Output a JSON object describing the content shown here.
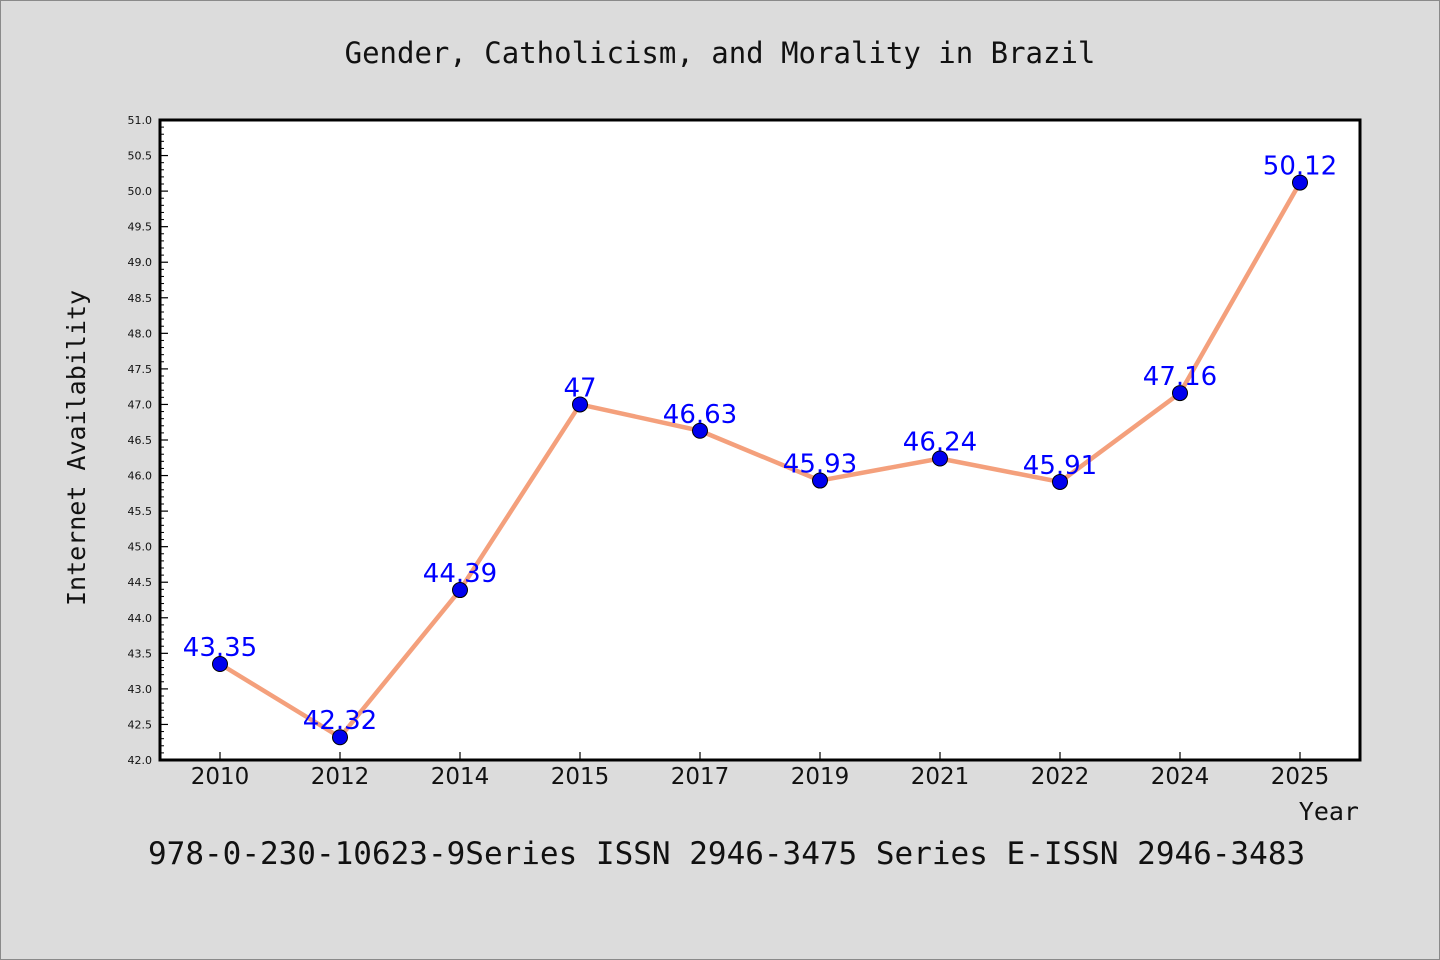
{
  "chart_data": {
    "type": "line",
    "title": "Gender, Catholicism, and Morality in Brazil",
    "xlabel": "Year",
    "ylabel": "Internet Availability",
    "categories": [
      "2010",
      "2012",
      "2014",
      "2015",
      "2017",
      "2019",
      "2021",
      "2022",
      "2024",
      "2025"
    ],
    "series": [
      {
        "values": [
          43.35,
          42.32,
          44.39,
          47,
          46.63,
          45.93,
          46.24,
          45.91,
          47.16,
          50.12
        ],
        "labels": [
          "43.35",
          "42.32",
          "44.39",
          "47",
          "46.63",
          "45.93",
          "46.24",
          "45.91",
          "47.16",
          "50.12"
        ]
      }
    ],
    "ylim": [
      42.0,
      51.0
    ],
    "yticks": [
      "42.0",
      "42.5",
      "43.0",
      "43.5",
      "44.0",
      "44.5",
      "45.0",
      "45.5",
      "46.0",
      "46.5",
      "47.0",
      "47.5",
      "48.0",
      "48.5",
      "49.0",
      "49.5",
      "50.0",
      "50.5",
      "51.0"
    ],
    "grid": false,
    "footer": "978-0-230-10623-9Series ISSN 2946-3475 Series E-ISSN 2946-3483",
    "colors": {
      "background": "#dcdcdc",
      "plot_area": "#ffffff",
      "line": "#f4a07c",
      "marker": "#0000ee",
      "data_label": "#0000ff",
      "axis": "#000000"
    }
  }
}
